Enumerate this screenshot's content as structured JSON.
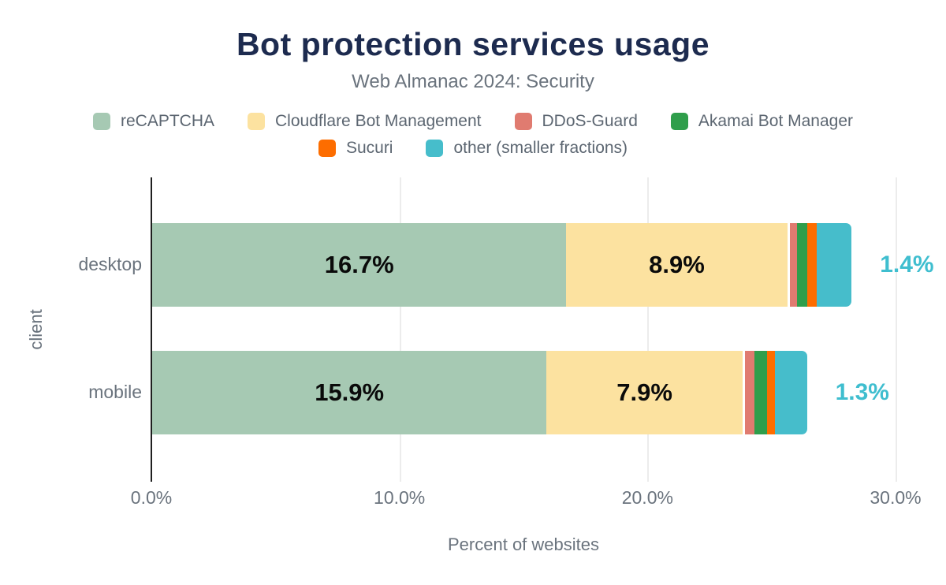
{
  "title": "Bot protection services usage",
  "subtitle": "Web Almanac 2024: Security",
  "colors": {
    "title": "#1d2b4f",
    "text": "#6a737d",
    "legend_text": "#5c6671",
    "axis_line": "#1f1f1f",
    "gridline": "#ececec",
    "value_label": "#0a0a0a",
    "other_label": "#3fbecf"
  },
  "chart_data": {
    "type": "bar",
    "orientation": "horizontal",
    "stacked": true,
    "title": "Bot protection services usage",
    "subtitle": "Web Almanac 2024: Security",
    "categories": [
      "desktop",
      "mobile"
    ],
    "series": [
      {
        "name": "reCAPTCHA",
        "color": "#a6c9b3",
        "values": [
          16.7,
          15.9
        ],
        "data_labels": [
          "16.7%",
          "15.9%"
        ]
      },
      {
        "name": "Cloudflare Bot Management",
        "color": "#fce2a0",
        "values": [
          8.9,
          7.9
        ],
        "data_labels": [
          "8.9%",
          "7.9%"
        ]
      },
      {
        "name": "DDoS-Guard",
        "color": "#e07b70",
        "values": [
          0.3,
          0.4
        ],
        "data_labels": null
      },
      {
        "name": "Akamai Bot Manager",
        "color": "#2f9e4b",
        "values": [
          0.4,
          0.5
        ],
        "data_labels": null
      },
      {
        "name": "Sucuri",
        "color": "#fd6d00",
        "values": [
          0.4,
          0.3
        ],
        "data_labels": null
      },
      {
        "name": "other (smaller fractions)",
        "color": "#46bdcb",
        "values": [
          1.4,
          1.3
        ],
        "data_labels": null
      }
    ],
    "end_labels": [
      "1.4%",
      "1.3%"
    ],
    "xlabel": "Percent of websites",
    "ylabel": "client",
    "xlim": [
      0,
      30
    ],
    "x_tick_values": [
      0,
      10,
      20,
      30
    ],
    "x_tick_labels": [
      "0.0%",
      "10.0%",
      "20.0%",
      "30.0%"
    ],
    "grid": true,
    "legend_position": "top"
  }
}
